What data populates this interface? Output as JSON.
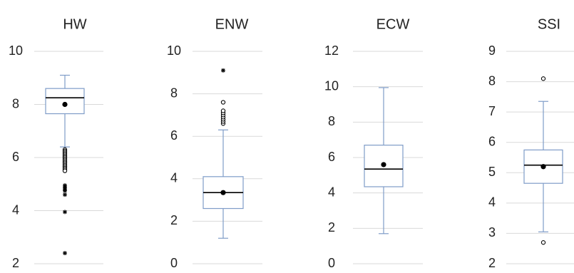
{
  "colors": {
    "box": "#7F9CC8",
    "grid": "#D9D9D9",
    "median": "#000000",
    "mean": "#000000",
    "text": "#222222"
  },
  "chart_data": [
    {
      "type": "boxplot",
      "title": "HW",
      "ylim": [
        2,
        10
      ],
      "yticks": [
        2,
        4,
        6,
        8,
        10
      ],
      "grid": true,
      "box": {
        "whisker_low": 6.4,
        "q1": 7.65,
        "median": 8.25,
        "q3": 8.6,
        "whisker_high": 9.1,
        "mean": 8.0
      },
      "outliers_circle": [
        6.3,
        6.25,
        6.2,
        6.15,
        6.1,
        6.05,
        6.0,
        5.95,
        5.9,
        5.85,
        5.8,
        5.75,
        5.7,
        5.65,
        5.6,
        5.55,
        5.5
      ],
      "outliers_star": [
        4.95,
        4.9,
        4.85,
        4.8,
        4.75,
        4.6,
        3.95,
        2.4
      ]
    },
    {
      "type": "boxplot",
      "title": "ENW",
      "ylim": [
        0,
        10
      ],
      "yticks": [
        0,
        2,
        4,
        6,
        8,
        10
      ],
      "grid": true,
      "box": {
        "whisker_low": 1.2,
        "q1": 2.6,
        "median": 3.35,
        "q3": 4.1,
        "whisker_high": 6.3,
        "mean": 3.35
      },
      "outliers_circle": [
        6.6,
        6.7,
        6.8,
        6.9,
        7.0,
        7.1,
        7.2,
        7.6
      ],
      "outliers_star": [
        9.1
      ]
    },
    {
      "type": "boxplot",
      "title": "ECW",
      "ylim": [
        0,
        12
      ],
      "yticks": [
        0,
        2,
        4,
        6,
        8,
        10,
        12
      ],
      "grid": true,
      "box": {
        "whisker_low": 1.7,
        "q1": 4.35,
        "median": 5.35,
        "q3": 6.7,
        "whisker_high": 9.95,
        "mean": 5.6
      },
      "outliers_circle": [],
      "outliers_star": []
    },
    {
      "type": "boxplot",
      "title": "SSI",
      "ylim": [
        2,
        9
      ],
      "yticks": [
        2,
        3,
        4,
        5,
        6,
        7,
        8,
        9
      ],
      "grid": true,
      "box": {
        "whisker_low": 3.05,
        "q1": 4.65,
        "median": 5.25,
        "q3": 5.75,
        "whisker_high": 7.35,
        "mean": 5.2
      },
      "outliers_circle": [
        8.1,
        2.7
      ],
      "outliers_star": []
    }
  ]
}
